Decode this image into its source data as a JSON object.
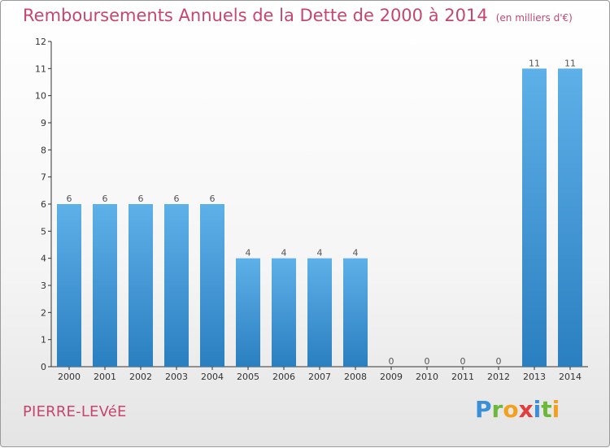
{
  "title": "Remboursements Annuels de la Dette de 2000 à 2014",
  "title_unit": "(en milliers d'€)",
  "commune": "PIERRE-LEVéE",
  "brand": {
    "letters": [
      {
        "char": "P",
        "color": "#3a8fd8"
      },
      {
        "char": "r",
        "color": "#6cb83a"
      },
      {
        "char": "o",
        "color": "#f2a01e"
      },
      {
        "char": "x",
        "color": "#e23d3d"
      },
      {
        "char": "i",
        "color": "#3a8fd8"
      },
      {
        "char": "t",
        "color": "#6cb83a"
      },
      {
        "char": "i",
        "color": "#f2a01e"
      }
    ]
  },
  "colors": {
    "bar_top": "#5eb0e8",
    "bar_bottom": "#2a7fc0",
    "title": "#c5476d",
    "axis": "#333333"
  },
  "chart_data": {
    "type": "bar",
    "title": "Remboursements Annuels de la Dette de 2000 à 2014",
    "xlabel": "",
    "ylabel": "",
    "categories": [
      "2000",
      "2001",
      "2002",
      "2003",
      "2004",
      "2005",
      "2006",
      "2007",
      "2008",
      "2009",
      "2010",
      "2011",
      "2012",
      "2013",
      "2014"
    ],
    "values": [
      6,
      6,
      6,
      6,
      6,
      4,
      4,
      4,
      4,
      0,
      0,
      0,
      0,
      11,
      11
    ],
    "ylim": [
      0,
      12
    ],
    "yticks": [
      0,
      1,
      2,
      3,
      4,
      5,
      6,
      7,
      8,
      9,
      10,
      11,
      12
    ],
    "grid": false,
    "data_labels": true
  }
}
